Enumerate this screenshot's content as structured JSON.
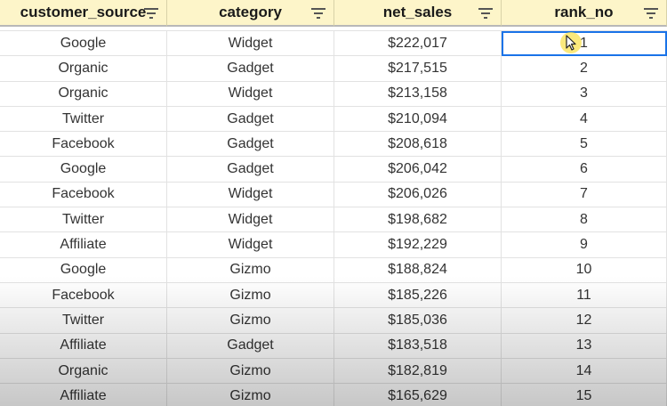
{
  "columns": [
    {
      "label": "customer_source"
    },
    {
      "label": "category"
    },
    {
      "label": "net_sales"
    },
    {
      "label": "rank_no"
    }
  ],
  "icons": {
    "filter": "filter-icon",
    "cursor": "mouse-pointer-icon"
  },
  "colors": {
    "header_bg": "#fdf5c9",
    "selection": "#1a73e8",
    "cursor_halo": "#fae150"
  },
  "selected_cell": {
    "row": 1,
    "column": "rank_no"
  },
  "rows": [
    {
      "customer_source": "Google",
      "category": "Widget",
      "net_sales": "$222,017",
      "rank_no": "1"
    },
    {
      "customer_source": "Organic",
      "category": "Gadget",
      "net_sales": "$217,515",
      "rank_no": "2"
    },
    {
      "customer_source": "Organic",
      "category": "Widget",
      "net_sales": "$213,158",
      "rank_no": "3"
    },
    {
      "customer_source": "Twitter",
      "category": "Gadget",
      "net_sales": "$210,094",
      "rank_no": "4"
    },
    {
      "customer_source": "Facebook",
      "category": "Gadget",
      "net_sales": "$208,618",
      "rank_no": "5"
    },
    {
      "customer_source": "Google",
      "category": "Gadget",
      "net_sales": "$206,042",
      "rank_no": "6"
    },
    {
      "customer_source": "Facebook",
      "category": "Widget",
      "net_sales": "$206,026",
      "rank_no": "7"
    },
    {
      "customer_source": "Twitter",
      "category": "Widget",
      "net_sales": "$198,682",
      "rank_no": "8"
    },
    {
      "customer_source": "Affiliate",
      "category": "Widget",
      "net_sales": "$192,229",
      "rank_no": "9"
    },
    {
      "customer_source": "Google",
      "category": "Gizmo",
      "net_sales": "$188,824",
      "rank_no": "10"
    },
    {
      "customer_source": "Facebook",
      "category": "Gizmo",
      "net_sales": "$185,226",
      "rank_no": "11"
    },
    {
      "customer_source": "Twitter",
      "category": "Gizmo",
      "net_sales": "$185,036",
      "rank_no": "12"
    },
    {
      "customer_source": "Affiliate",
      "category": "Gadget",
      "net_sales": "$183,518",
      "rank_no": "13"
    },
    {
      "customer_source": "Organic",
      "category": "Gizmo",
      "net_sales": "$182,819",
      "rank_no": "14"
    },
    {
      "customer_source": "Affiliate",
      "category": "Gizmo",
      "net_sales": "$165,629",
      "rank_no": "15"
    }
  ]
}
